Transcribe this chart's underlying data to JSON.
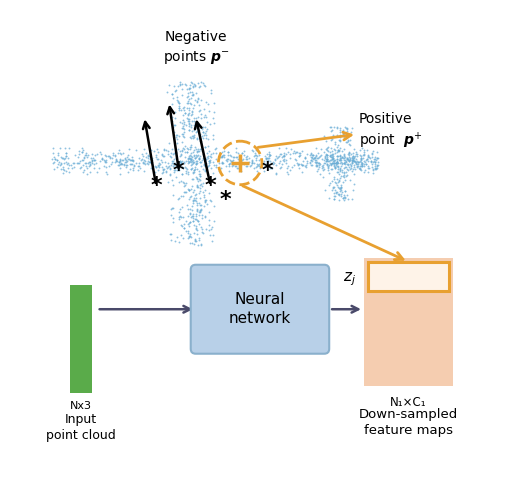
{
  "background_color": "#ffffff",
  "airplane_color": "#6baed6",
  "green_bar_color": "#5aab4a",
  "nn_box_color": "#b8d0e8",
  "nn_box_edge_color": "#8ab0cc",
  "feature_map_fill": "#f5cdb0",
  "feature_map_edge": "#e8a030",
  "orange_color": "#e8a030",
  "arrow_color": "#4a4a6a",
  "dashed_circle_color": "#e8a030",
  "neg_label": "Negative\npoints $\\boldsymbol{p}^-$",
  "pos_label_line1": "Positive",
  "pos_label_line2": "point  $\\boldsymbol{p}^+$",
  "nx3_label": "Nx3",
  "input_label_line1": "Input",
  "input_label_line2": "point cloud",
  "n1c1_label": "N₁×C₁",
  "dsf_label_line1": "Down-sampled",
  "dsf_label_line2": "feature maps",
  "zj_label": "$z_j$",
  "nn_label": "Neural\nnetwork"
}
